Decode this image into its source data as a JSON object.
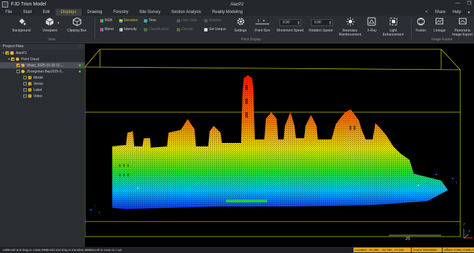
{
  "window": {
    "app_title": "FJD Trion Model",
    "project_name": "AlanP2"
  },
  "menu": {
    "items": [
      "File",
      "Start",
      "Edit",
      "Displays",
      "Drawing",
      "Forestry",
      "Site Survey",
      "Section Analysis",
      "Reality Modeling"
    ],
    "active": "Displays",
    "share": "Share",
    "help": "Help"
  },
  "ribbon": {
    "view_group": {
      "label": "View",
      "background": "Background",
      "viewpoint": "Viewpoint",
      "clipping_box": "Clipping Box"
    },
    "point_display": {
      "label": "Point Display",
      "rgb": "RGB",
      "elevation": "Elevation",
      "time": "Time",
      "user_data": "User Data",
      "shadow": "Shadow",
      "blend": "Blend",
      "intensity": "Intensity",
      "classification": "Classification",
      "density": "Density",
      "set_unique": "Set Unique",
      "settings": "Settings",
      "point_size": "Point Size",
      "movement_speed": "Movement Speed",
      "movement_speed_value": "0.50",
      "rotation_speed": "Rotation Speed",
      "rotation_speed_value": "5.00",
      "boundary_reinforcement": "Boundary Reinforcement",
      "xray": "X-Ray",
      "light_enhancement": "Light Enhancement"
    },
    "image_fusion": {
      "label": "Image Fusion",
      "fusion": "Fusion",
      "linkage": "Linkage",
      "panorama_export": "Panorama Image Export"
    }
  },
  "project_files": {
    "title": "Project Files",
    "collapse": "‹",
    "root": "AlanP2",
    "point_cloud": "Point Cloud",
    "cloud_1": "Wuan_2025-10-10-11-...",
    "cloud_2": "Zhongshan Bay2025-0...",
    "model": "Model",
    "vector": "Vector",
    "label": "Label",
    "video": "Video"
  },
  "viewport": {
    "scale": "25",
    "axis_z": "Z",
    "axis_y": "Y",
    "axis_x": "X"
  },
  "status": {
    "hint": "LMBHold and drag to rotate,RMBHold and drag to translate,MMBScroll to zoom in / out.",
    "location": "Location: -41.269 , -33.780 , 17.132",
    "count": "Count: 19103050",
    "offset": "Offset: 0.000, 0.000, 0.000"
  },
  "colors": {
    "accent": "#e9b13b",
    "status_bg": "#e9a51a",
    "bbox_line": "#c8c800"
  }
}
